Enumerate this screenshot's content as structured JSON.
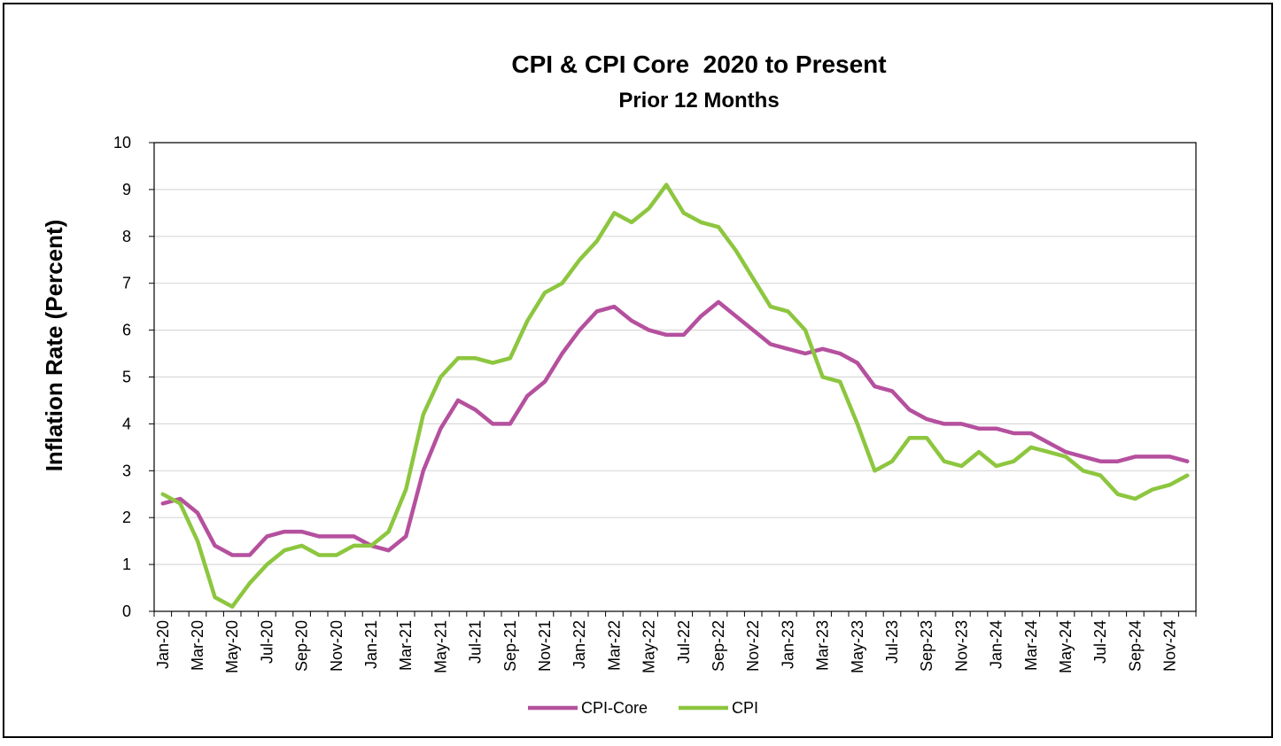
{
  "chart_data": {
    "type": "line",
    "title": "CPI & CPI Core  2020 to Present",
    "subtitle": "Prior 12 Months",
    "xlabel": "",
    "ylabel": "Inflation Rate (Percent)",
    "ylim": [
      0,
      10
    ],
    "yticks": [
      0,
      1,
      2,
      3,
      4,
      5,
      6,
      7,
      8,
      9,
      10
    ],
    "grid": true,
    "legend_position": "bottom",
    "x": [
      "Jan-20",
      "Feb-20",
      "Mar-20",
      "Apr-20",
      "May-20",
      "Jun-20",
      "Jul-20",
      "Aug-20",
      "Sep-20",
      "Oct-20",
      "Nov-20",
      "Dec-20",
      "Jan-21",
      "Feb-21",
      "Mar-21",
      "Apr-21",
      "May-21",
      "Jun-21",
      "Jul-21",
      "Aug-21",
      "Sep-21",
      "Oct-21",
      "Nov-21",
      "Dec-21",
      "Jan-22",
      "Feb-22",
      "Mar-22",
      "Apr-22",
      "May-22",
      "Jun-22",
      "Jul-22",
      "Aug-22",
      "Sep-22",
      "Oct-22",
      "Nov-22",
      "Dec-22",
      "Jan-23",
      "Feb-23",
      "Mar-23",
      "Apr-23",
      "May-23",
      "Jun-23",
      "Jul-23",
      "Aug-23",
      "Sep-23",
      "Oct-23",
      "Nov-23",
      "Dec-23",
      "Jan-24",
      "Feb-24",
      "Mar-24",
      "Apr-24",
      "May-24",
      "Jun-24",
      "Jul-24",
      "Aug-24",
      "Sep-24",
      "Oct-24",
      "Nov-24",
      "Dec-24"
    ],
    "x_tick_labels": [
      "Jan-20",
      "Mar-20",
      "May-20",
      "Jul-20",
      "Sep-20",
      "Nov-20",
      "Jan-21",
      "Mar-21",
      "May-21",
      "Jul-21",
      "Sep-21",
      "Nov-21",
      "Jan-22",
      "Mar-22",
      "May-22",
      "Jul-22",
      "Sep-22",
      "Nov-22",
      "Jan-23",
      "Mar-23",
      "May-23",
      "Jul-23",
      "Sep-23",
      "Nov-23",
      "Jan-24",
      "Mar-24",
      "May-24",
      "Jul-24",
      "Sep-24",
      "Nov-24"
    ],
    "series": [
      {
        "name": "CPI-Core",
        "color": "#b5509e",
        "values": [
          2.3,
          2.4,
          2.1,
          1.4,
          1.2,
          1.2,
          1.6,
          1.7,
          1.7,
          1.6,
          1.6,
          1.6,
          1.4,
          1.3,
          1.6,
          3.0,
          3.9,
          4.5,
          4.3,
          4.0,
          4.0,
          4.6,
          4.9,
          5.5,
          6.0,
          6.4,
          6.5,
          6.2,
          6.0,
          5.9,
          5.9,
          6.3,
          6.6,
          6.3,
          6.0,
          5.7,
          5.6,
          5.5,
          5.6,
          5.5,
          5.3,
          4.8,
          4.7,
          4.3,
          4.1,
          4.0,
          4.0,
          3.9,
          3.9,
          3.8,
          3.8,
          3.6,
          3.4,
          3.3,
          3.2,
          3.2,
          3.3,
          3.3,
          3.3,
          3.2
        ]
      },
      {
        "name": "CPI",
        "color": "#8dc63f",
        "values": [
          2.5,
          2.3,
          1.5,
          0.3,
          0.1,
          0.6,
          1.0,
          1.3,
          1.4,
          1.2,
          1.2,
          1.4,
          1.4,
          1.7,
          2.6,
          4.2,
          5.0,
          5.4,
          5.4,
          5.3,
          5.4,
          6.2,
          6.8,
          7.0,
          7.5,
          7.9,
          8.5,
          8.3,
          8.6,
          9.1,
          8.5,
          8.3,
          8.2,
          7.7,
          7.1,
          6.5,
          6.4,
          6.0,
          5.0,
          4.9,
          4.0,
          3.0,
          3.2,
          3.7,
          3.7,
          3.2,
          3.1,
          3.4,
          3.1,
          3.2,
          3.5,
          3.4,
          3.3,
          3.0,
          2.9,
          2.5,
          2.4,
          2.6,
          2.7,
          2.9
        ]
      }
    ]
  }
}
